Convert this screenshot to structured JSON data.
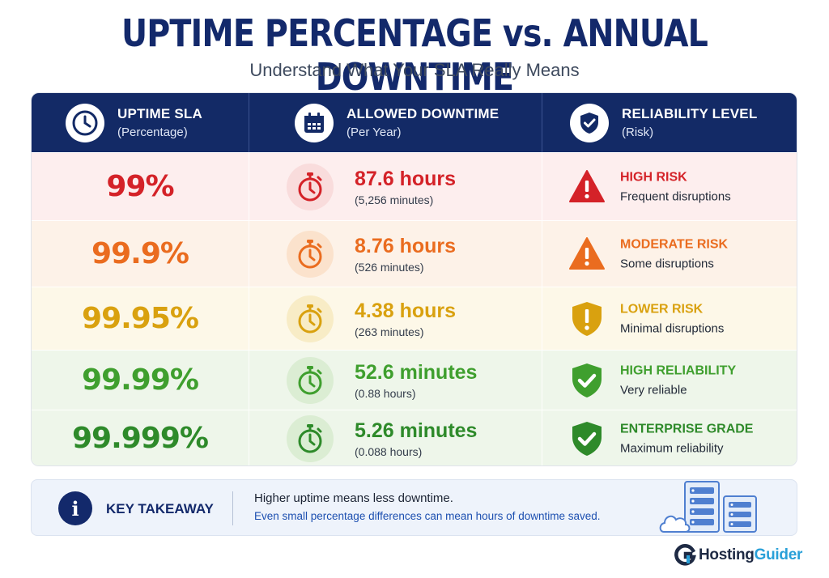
{
  "title": "UPTIME PERCENTAGE vs. ANNUAL DOWNTIME",
  "subtitle": "Understand What Your SLA Really Means",
  "columns": [
    {
      "title": "UPTIME SLA",
      "sub": "(Percentage)",
      "icon": "clock-icon"
    },
    {
      "title": "ALLOWED DOWNTIME",
      "sub": "(Per Year)",
      "icon": "calendar-icon"
    },
    {
      "title": "RELIABILITY LEVEL",
      "sub": "(Risk)",
      "icon": "shield-check-icon"
    }
  ],
  "rows": [
    {
      "uptime": "99%",
      "downtime": "87.6 hours",
      "downtime_sub": "(5,256 minutes)",
      "risk": "HIGH RISK",
      "risk_sub": "Frequent disruptions",
      "risk_icon": "warning-triangle-icon",
      "color": "#d42228",
      "bg": "#fdeeee",
      "icon_bg": "#f9dcdc"
    },
    {
      "uptime": "99.9%",
      "downtime": "8.76 hours",
      "downtime_sub": "(526 minutes)",
      "risk": "MODERATE RISK",
      "risk_sub": "Some disruptions",
      "risk_icon": "warning-triangle-icon",
      "color": "#ea6c1f",
      "bg": "#fdf2e8",
      "icon_bg": "#fbe2cc"
    },
    {
      "uptime": "99.95%",
      "downtime": "4.38 hours",
      "downtime_sub": "(263 minutes)",
      "risk": "LOWER RISK",
      "risk_sub": "Minimal disruptions",
      "risk_icon": "shield-exclamation-icon",
      "color": "#d9a10f",
      "bg": "#fdf8e8",
      "icon_bg": "#f8ecc6"
    },
    {
      "uptime": "99.99%",
      "downtime": "52.6 minutes",
      "downtime_sub": "(0.88 hours)",
      "risk": "HIGH RELIABILITY",
      "risk_sub": "Very reliable",
      "risk_icon": "shield-check-icon",
      "color": "#3f9f2e",
      "bg": "#eef6ea",
      "icon_bg": "#dbedd3"
    },
    {
      "uptime": "99.999%",
      "downtime": "5.26 minutes",
      "downtime_sub": "(0.088 hours)",
      "risk": "ENTERPRISE GRADE",
      "risk_sub": "Maximum reliability",
      "risk_icon": "shield-check-icon",
      "color": "#2e8a2a",
      "bg": "#eef6ea",
      "icon_bg": "#dbedd3"
    }
  ],
  "takeaway": {
    "label": "KEY TAKEAWAY",
    "line1": "Higher uptime means less downtime.",
    "line2": "Even small percentage differences can mean hours of downtime saved."
  },
  "brand": {
    "a": "Hosting",
    "b": "Guider"
  }
}
